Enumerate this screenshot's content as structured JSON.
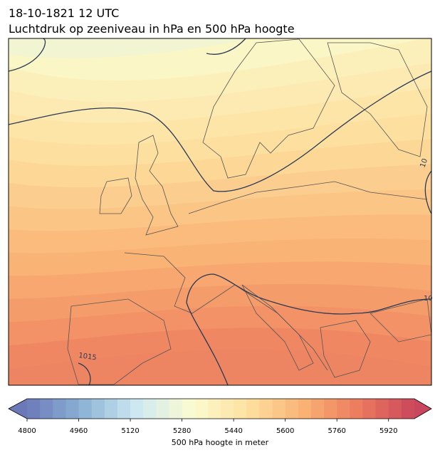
{
  "header": {
    "title_line1": "18-10-1821 12 UTC",
    "title_line2": "Luchtdruk op zeeniveau in hPa en 500 hPa hoogte"
  },
  "map": {
    "contour_labels": [
      "1015",
      "10",
      "10"
    ]
  },
  "colorbar": {
    "label": "500 hPa hoogte in meter",
    "range": [
      4800,
      6000
    ],
    "n_colors": 30,
    "ticks": [
      4800,
      4960,
      5120,
      5280,
      5440,
      5600,
      5760,
      5920
    ],
    "colormap": [
      "#6b79b9",
      "#8cb3d5",
      "#cfe9f2",
      "#fbfbcf",
      "#fde0a0",
      "#f9b274",
      "#ec7a5e",
      "#c9475c"
    ]
  }
}
